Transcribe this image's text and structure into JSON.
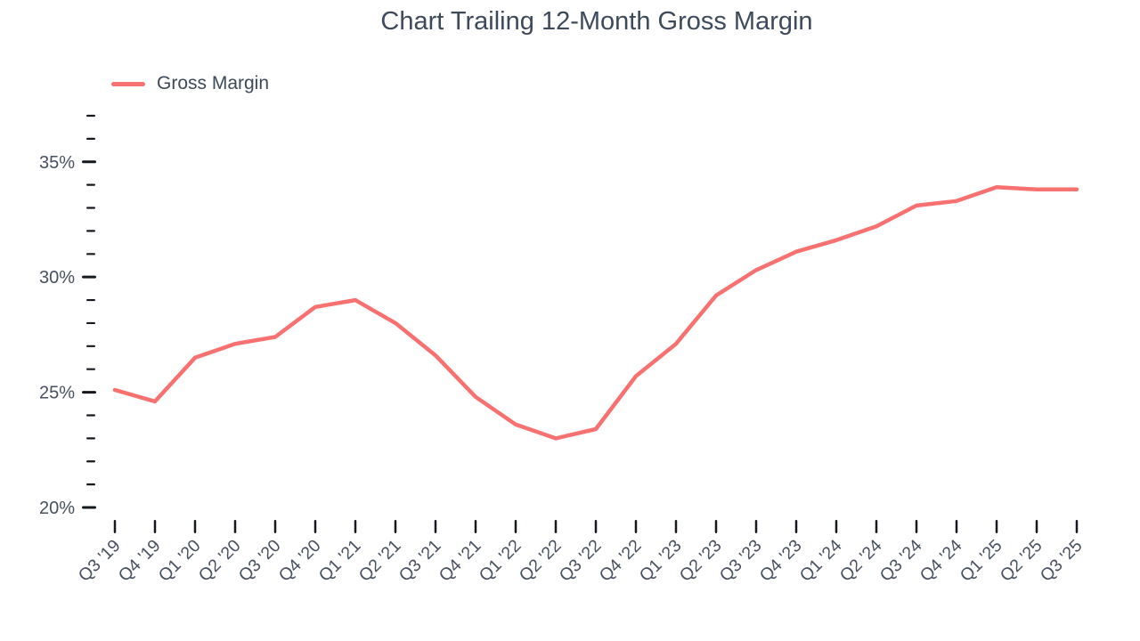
{
  "header": {
    "title": "Chart Trailing 12-Month Gross Margin"
  },
  "legend": {
    "items": [
      {
        "label": "Gross Margin",
        "color": "#f87171"
      }
    ]
  },
  "chart_data": {
    "type": "line",
    "title": "Chart Trailing 12-Month Gross Margin",
    "categories": [
      "Q3 '19",
      "Q4 '19",
      "Q1 '20",
      "Q2 '20",
      "Q3 '20",
      "Q4 '20",
      "Q1 '21",
      "Q2 '21",
      "Q3 '21",
      "Q4 '21",
      "Q1 '22",
      "Q2 '22",
      "Q3 '22",
      "Q4 '22",
      "Q1 '23",
      "Q2 '23",
      "Q3 '23",
      "Q4 '23",
      "Q1 '24",
      "Q2 '24",
      "Q3 '24",
      "Q4 '24",
      "Q1 '25",
      "Q2 '25",
      "Q3 '25"
    ],
    "series": [
      {
        "name": "Gross Margin",
        "color": "#f87171",
        "values": [
          25.1,
          24.6,
          26.5,
          27.1,
          27.4,
          28.7,
          29.0,
          28.0,
          26.6,
          24.8,
          23.6,
          23.0,
          23.4,
          25.7,
          27.1,
          29.2,
          30.3,
          31.1,
          31.6,
          32.2,
          33.1,
          33.3,
          33.9,
          33.8,
          33.8
        ],
        "unit": "%"
      }
    ],
    "xlabel": "",
    "ylabel": "",
    "y_axis": {
      "min": 20,
      "max": 37,
      "minor_step": 1,
      "major_step": 5,
      "major_tick_labels": [
        "20%",
        "25%",
        "30%",
        "35%"
      ],
      "unit": "%"
    },
    "grid": false,
    "legend_position": "top-left",
    "colors": {
      "series_line": "#f87171",
      "title_text": "#3d4a5c",
      "axis_label_text": "#47505f",
      "tick_mark": "#16191d",
      "background": "#ffffff"
    }
  }
}
